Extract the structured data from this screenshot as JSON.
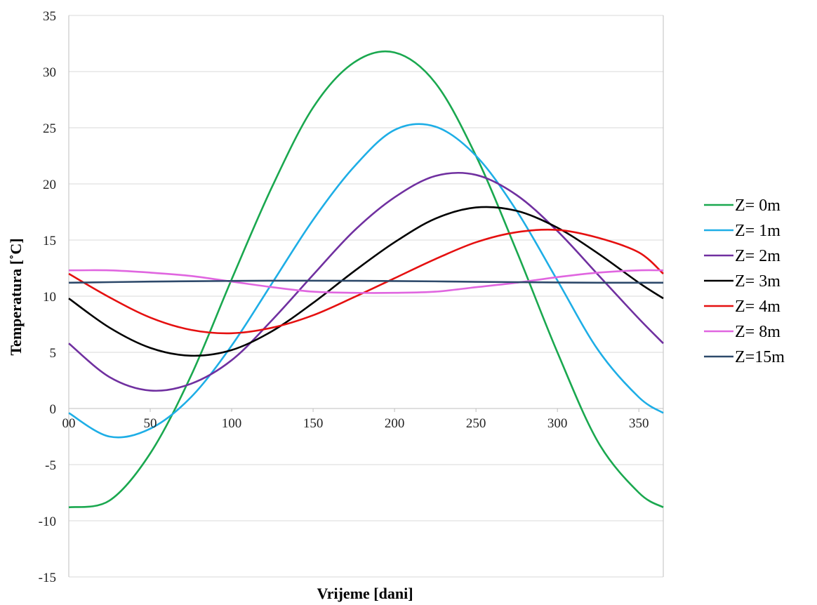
{
  "chart_data": {
    "type": "line",
    "xlabel": "Vrijeme [dani]",
    "ylabel": "Temperatura [˚C]",
    "xlim": [
      0,
      365
    ],
    "ylim": [
      -15,
      35
    ],
    "x_ticks": [
      0,
      50,
      100,
      150,
      200,
      250,
      300,
      350
    ],
    "x_tick_labels": [
      "00",
      "50",
      "100",
      "150",
      "200",
      "250",
      "300",
      "350"
    ],
    "y_ticks": [
      -15,
      -10,
      -5,
      0,
      5,
      10,
      15,
      20,
      25,
      30,
      35
    ],
    "y_tick_labels": [
      "-15",
      "-10",
      "-5",
      "0",
      "5",
      "10",
      "15",
      "20",
      "25",
      "30",
      "35"
    ],
    "grid": "horizontal",
    "legend_position": "right",
    "x": [
      0,
      25,
      50,
      75,
      100,
      125,
      150,
      175,
      200,
      225,
      250,
      275,
      300,
      325,
      350,
      365
    ],
    "series": [
      {
        "name": "Z= 0m",
        "color": "#1aa84f",
        "values": [
          -8.8,
          -8.2,
          -4.0,
          2.9,
          11.5,
          19.8,
          26.8,
          30.8,
          31.7,
          29.0,
          22.5,
          14.0,
          5.0,
          -3.0,
          -7.5,
          -8.8
        ]
      },
      {
        "name": "Z= 1m",
        "color": "#1eaee6",
        "values": [
          -0.4,
          -2.5,
          -1.8,
          1.0,
          5.6,
          11.2,
          16.8,
          21.5,
          24.8,
          25.1,
          22.5,
          17.6,
          11.4,
          5.2,
          1.0,
          -0.4
        ]
      },
      {
        "name": "Z= 2m",
        "color": "#7030a0",
        "values": [
          5.8,
          2.8,
          1.6,
          2.2,
          4.3,
          7.9,
          11.9,
          15.8,
          18.8,
          20.7,
          20.8,
          19.0,
          15.8,
          11.9,
          8.0,
          5.8
        ]
      },
      {
        "name": "Z= 3m",
        "color": "#000000",
        "values": [
          9.8,
          7.2,
          5.4,
          4.7,
          5.2,
          6.9,
          9.4,
          12.2,
          14.8,
          16.9,
          17.9,
          17.6,
          16.1,
          13.8,
          11.2,
          9.8
        ]
      },
      {
        "name": "Z= 4m",
        "color": "#e51010",
        "values": [
          12.0,
          9.9,
          8.1,
          7.0,
          6.7,
          7.2,
          8.3,
          9.9,
          11.6,
          13.3,
          14.8,
          15.7,
          15.9,
          15.2,
          13.9,
          12.0
        ]
      },
      {
        "name": "Z= 8m",
        "color": "#e066e0",
        "values": [
          12.3,
          12.3,
          12.1,
          11.8,
          11.3,
          10.8,
          10.4,
          10.3,
          10.3,
          10.4,
          10.8,
          11.2,
          11.7,
          12.1,
          12.3,
          12.3
        ]
      },
      {
        "name": "Z=15m",
        "color": "#2e4a6b",
        "values": [
          11.2,
          11.25,
          11.3,
          11.33,
          11.36,
          11.38,
          11.38,
          11.37,
          11.35,
          11.32,
          11.28,
          11.25,
          11.22,
          11.2,
          11.2,
          11.2
        ]
      }
    ]
  }
}
